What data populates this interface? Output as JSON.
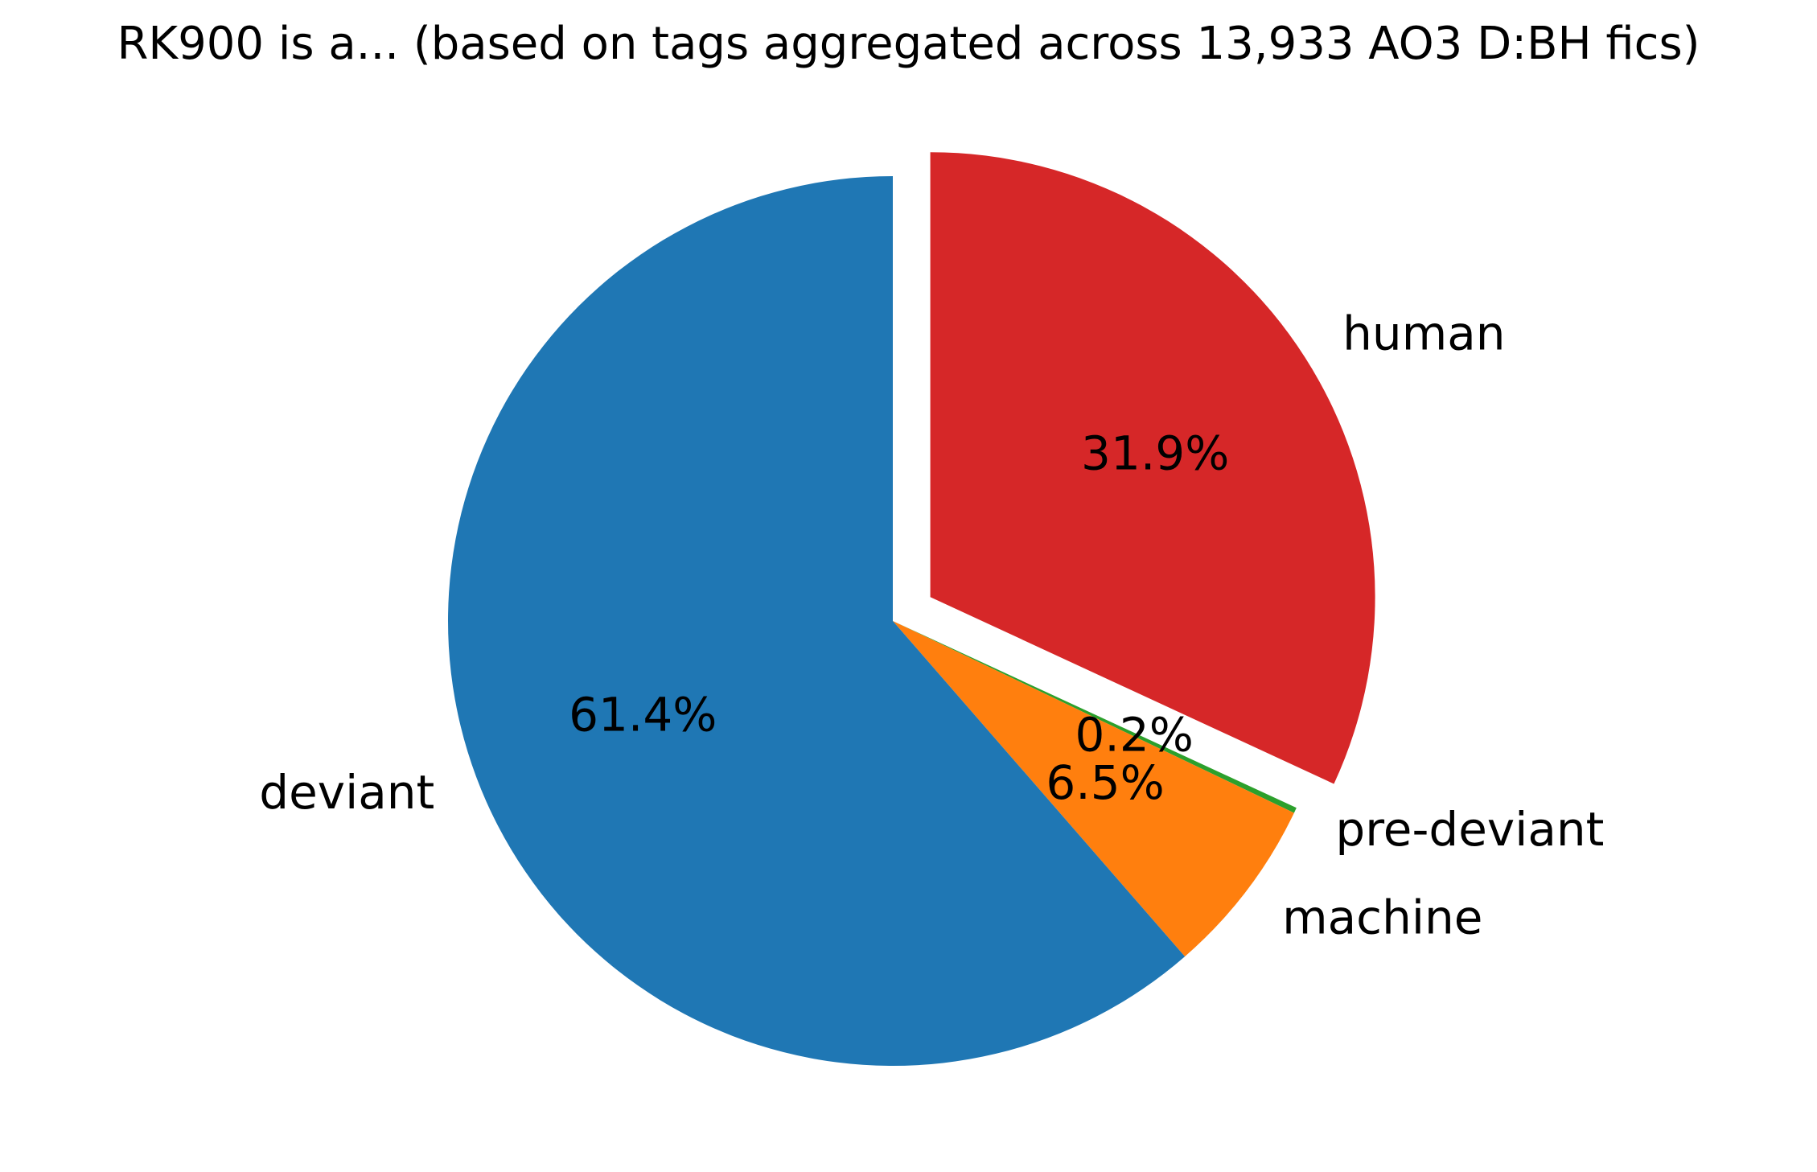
{
  "chart_data": {
    "type": "pie",
    "title": "RK900 is a... (based on tags aggregated across 13,933 AO3 D:BH fics)",
    "slices": [
      {
        "label": "human",
        "value": 31.9,
        "pct_label": "31.9%",
        "color": "#d62728",
        "exploded": true
      },
      {
        "label": "pre-deviant",
        "value": 0.2,
        "pct_label": "0.2%",
        "color": "#2ca02c",
        "exploded": false
      },
      {
        "label": "machine",
        "value": 6.5,
        "pct_label": "6.5%",
        "color": "#ff7f0e",
        "exploded": false
      },
      {
        "label": "deviant",
        "value": 61.4,
        "pct_label": "61.4%",
        "color": "#1f77b4",
        "exploded": false
      }
    ],
    "start_angle_deg": 90,
    "direction": "clockwise"
  }
}
